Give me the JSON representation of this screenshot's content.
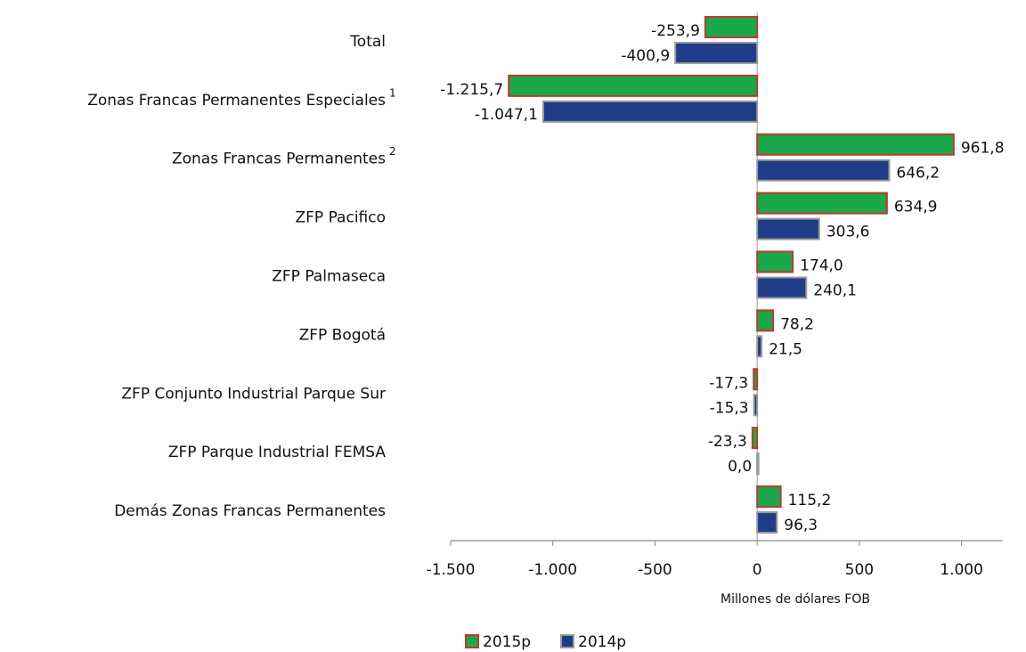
{
  "chart_data": {
    "type": "hbar",
    "categories": [
      "Total",
      "Zonas Francas Permanentes Especiales",
      "Zonas Francas Permanentes",
      "ZFP Pacifico",
      "ZFP Palmaseca",
      "ZFP Bogotá",
      "ZFP Conjunto Industrial Parque Sur",
      "ZFP Parque Industrial FEMSA",
      "Demás Zonas Francas Permanentes"
    ],
    "category_superscripts": [
      null,
      "1",
      "2",
      null,
      null,
      null,
      null,
      null,
      null
    ],
    "series": [
      {
        "name": "2015p",
        "color": "#1aa84a",
        "edge": "#c0392b",
        "values": [
          -253.9,
          -1215.7,
          961.8,
          634.9,
          174.0,
          78.2,
          -17.3,
          -23.3,
          115.2
        ],
        "value_labels": [
          "-253,9",
          "-1.215,7",
          "961,8",
          "634,9",
          "174,0",
          "78,2",
          "-17,3",
          "-23,3",
          "115,2"
        ]
      },
      {
        "name": "2014p",
        "color": "#1f3c88",
        "edge": "#9a9a9a",
        "values": [
          -400.9,
          -1047.1,
          646.2,
          303.6,
          240.1,
          21.5,
          -15.3,
          0.0,
          96.3
        ],
        "value_labels": [
          "-400,9",
          "-1.047,1",
          "646,2",
          "303,6",
          "240,1",
          "21,5",
          "-15,3",
          "0,0",
          "96,3"
        ]
      }
    ],
    "xlabel": "Millones de dólares FOB",
    "xlim": [
      -1500,
      1200
    ],
    "xticks": [
      {
        "value": -1500,
        "label": "-1.500"
      },
      {
        "value": -1000,
        "label": "-1.000"
      },
      -500,
      0,
      500,
      {
        "value": 1000,
        "label": "1.000"
      }
    ],
    "legend": "bottom"
  }
}
